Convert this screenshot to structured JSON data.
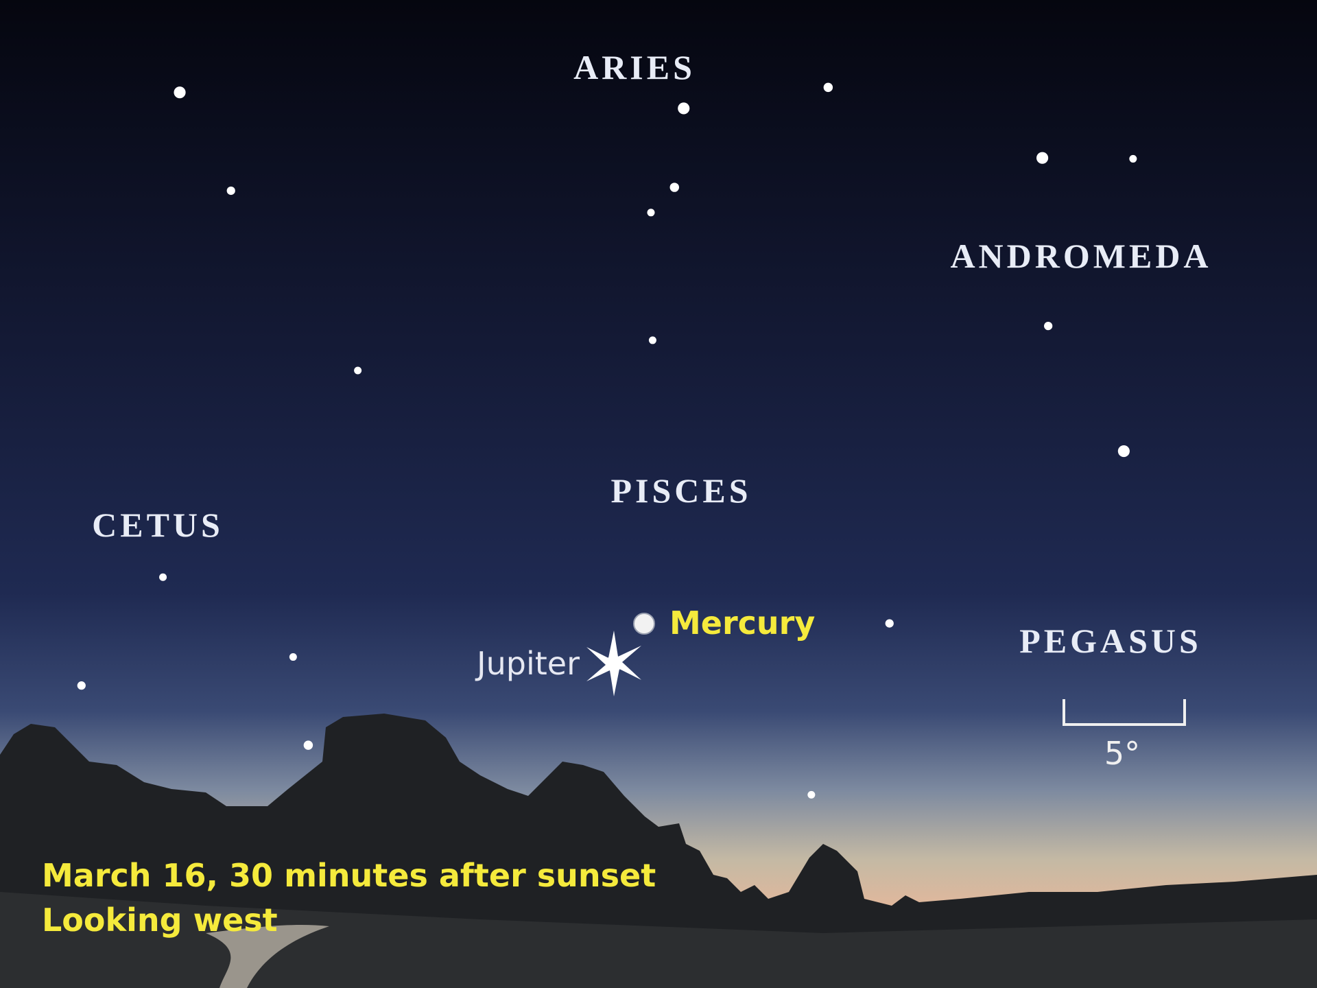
{
  "constellations": {
    "aries": "ARIES",
    "andromeda": "ANDROMEDA",
    "pisces": "PISCES",
    "cetus": "CETUS",
    "pegasus": "PEGASUS"
  },
  "planets": {
    "mercury": "Mercury",
    "jupiter": "Jupiter"
  },
  "scale_label": "5°",
  "caption": {
    "line1": "March 16, 30 minutes after sunset",
    "line2": "Looking west"
  }
}
